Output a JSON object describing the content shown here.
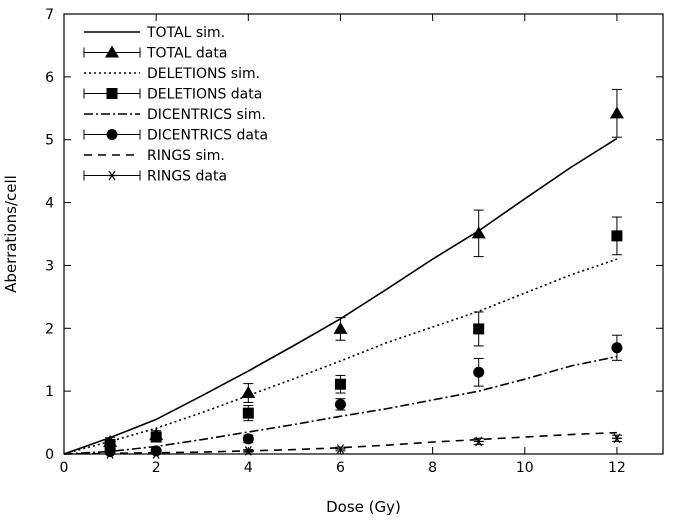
{
  "chart_data": {
    "type": "line",
    "title": "",
    "xlabel": "Dose (Gy)",
    "ylabel": "Aberrations/cell",
    "xlim": [
      0,
      13
    ],
    "ylim": [
      0,
      7
    ],
    "xticks": [
      0,
      2,
      4,
      6,
      8,
      10,
      12
    ],
    "yticks": [
      0,
      1,
      2,
      3,
      4,
      5,
      6,
      7
    ],
    "grid": false,
    "legend_position": "top-left",
    "series": [
      {
        "name": "TOTAL sim.",
        "kind": "line",
        "dash": "solid",
        "x": [
          0,
          1,
          2,
          3,
          4,
          5,
          6,
          7,
          8,
          9,
          10,
          11,
          12
        ],
        "y": [
          0,
          0.26,
          0.55,
          0.93,
          1.32,
          1.73,
          2.15,
          2.62,
          3.1,
          3.55,
          4.06,
          4.56,
          5.02
        ]
      },
      {
        "name": "TOTAL data",
        "kind": "points",
        "marker": "triangle",
        "x": [
          1,
          2,
          4,
          6,
          9,
          12
        ],
        "y": [
          0.19,
          0.3,
          0.97,
          1.99,
          3.51,
          5.42
        ],
        "err": [
          0.07,
          0.07,
          0.15,
          0.18,
          0.37,
          0.38
        ]
      },
      {
        "name": "DELETIONS sim.",
        "kind": "line",
        "dash": "dotted",
        "x": [
          0,
          1,
          2,
          3,
          4,
          5,
          6,
          7,
          8,
          9,
          10,
          11,
          12
        ],
        "y": [
          0,
          0.2,
          0.41,
          0.66,
          0.93,
          1.2,
          1.48,
          1.77,
          2.02,
          2.27,
          2.56,
          2.85,
          3.1
        ]
      },
      {
        "name": "DELETIONS data",
        "kind": "points",
        "marker": "square",
        "x": [
          1,
          2,
          4,
          6,
          9,
          12
        ],
        "y": [
          0.15,
          0.27,
          0.65,
          1.11,
          1.99,
          3.47
        ],
        "err": [
          0.06,
          0.06,
          0.12,
          0.14,
          0.27,
          0.3
        ]
      },
      {
        "name": "DICENTRICS sim.",
        "kind": "line",
        "dash": "dash-dot",
        "x": [
          0,
          1,
          2,
          3,
          4,
          5,
          6,
          7,
          8,
          9,
          10,
          11,
          12
        ],
        "y": [
          0,
          0.04,
          0.12,
          0.23,
          0.35,
          0.47,
          0.6,
          0.72,
          0.86,
          1.0,
          1.19,
          1.4,
          1.55
        ]
      },
      {
        "name": "DICENTRICS data",
        "kind": "points",
        "marker": "circle",
        "x": [
          1,
          2,
          4,
          6,
          9,
          12
        ],
        "y": [
          0.04,
          0.05,
          0.24,
          0.79,
          1.3,
          1.69
        ],
        "err": [
          0.03,
          0.03,
          0.06,
          0.09,
          0.22,
          0.2
        ]
      },
      {
        "name": "RINGS sim.",
        "kind": "line",
        "dash": "dashed",
        "x": [
          0,
          1,
          2,
          3,
          4,
          5,
          6,
          7,
          8,
          9,
          10,
          11,
          12
        ],
        "y": [
          0,
          0.01,
          0.02,
          0.03,
          0.05,
          0.07,
          0.1,
          0.14,
          0.19,
          0.23,
          0.27,
          0.31,
          0.34
        ]
      },
      {
        "name": "RINGS data",
        "kind": "points",
        "marker": "asterisk",
        "x": [
          1,
          2,
          4,
          6,
          9,
          12
        ],
        "y": [
          0.0,
          0.0,
          0.05,
          0.08,
          0.2,
          0.25
        ],
        "err": [
          0.01,
          0.01,
          0.02,
          0.03,
          0.05,
          0.05
        ]
      }
    ]
  }
}
